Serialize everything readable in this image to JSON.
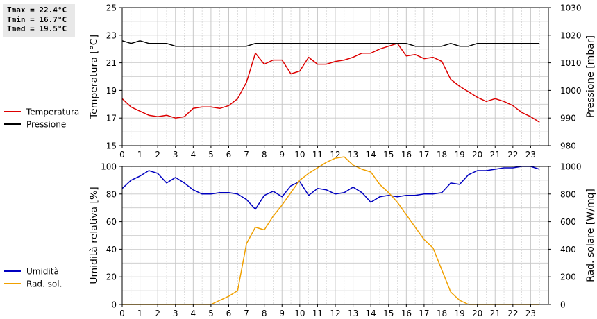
{
  "stats": {
    "tmax": "Tmax = 22.4°C",
    "tmin": "Tmin = 16.7°C",
    "tmed": "Tmed = 19.5°C"
  },
  "colors": {
    "temperature": "#dd0000",
    "pressure": "#000000",
    "humidity": "#0000c0",
    "solar": "#f0a000",
    "grid": "#c8c8c8"
  },
  "chart_data": [
    {
      "type": "line",
      "title": "",
      "x_ticks": [
        0,
        1,
        2,
        3,
        4,
        5,
        6,
        7,
        8,
        9,
        10,
        11,
        12,
        13,
        14,
        15,
        16,
        17,
        18,
        19,
        20,
        21,
        22,
        23
      ],
      "xlim": [
        0,
        24
      ],
      "y_left": {
        "label": "Temperatura [°C]",
        "lim": [
          15,
          25
        ],
        "ticks": [
          15,
          17,
          19,
          21,
          23,
          25
        ]
      },
      "y_right": {
        "label": "Pressione [mbar]",
        "lim": [
          980,
          1030
        ],
        "ticks": [
          980,
          990,
          1000,
          1010,
          1020,
          1030
        ]
      },
      "grid": true,
      "legend": "left",
      "series": [
        {
          "name": "Temperatura",
          "axis": "left",
          "color": "#dd0000",
          "x": [
            0,
            0.5,
            1,
            1.5,
            2,
            2.5,
            3,
            3.5,
            4,
            4.5,
            5,
            5.5,
            6,
            6.5,
            7,
            7.5,
            8,
            8.5,
            9,
            9.5,
            10,
            10.5,
            11,
            11.5,
            12,
            12.5,
            13,
            13.5,
            14,
            14.5,
            15,
            15.5,
            16,
            16.5,
            17,
            17.5,
            18,
            18.5,
            19,
            19.5,
            20,
            20.5,
            21,
            21.5,
            22,
            22.5,
            23,
            23.5
          ],
          "y": [
            18.4,
            17.8,
            17.5,
            17.2,
            17.1,
            17.2,
            17.0,
            17.1,
            17.7,
            17.8,
            17.8,
            17.7,
            17.9,
            18.4,
            19.6,
            21.7,
            20.9,
            21.2,
            21.2,
            20.2,
            20.4,
            21.4,
            20.9,
            20.9,
            21.1,
            21.2,
            21.4,
            21.7,
            21.7,
            22.0,
            22.2,
            22.4,
            21.5,
            21.6,
            21.3,
            21.4,
            21.1,
            19.8,
            19.3,
            18.9,
            18.5,
            18.2,
            18.4,
            18.2,
            17.9,
            17.4,
            17.1,
            16.7
          ]
        },
        {
          "name": "Pressione",
          "axis": "right",
          "color": "#000000",
          "x": [
            0,
            0.5,
            1,
            1.5,
            2,
            2.5,
            3,
            3.5,
            4,
            4.5,
            5,
            5.5,
            6,
            6.5,
            7,
            7.5,
            8,
            8.5,
            9,
            9.5,
            10,
            10.5,
            11,
            11.5,
            12,
            12.5,
            13,
            13.5,
            14,
            14.5,
            15,
            15.5,
            16,
            16.5,
            17,
            17.5,
            18,
            18.5,
            19,
            19.5,
            20,
            20.5,
            21,
            21.5,
            22,
            22.5,
            23,
            23.5
          ],
          "y": [
            1018,
            1017,
            1018,
            1017,
            1017,
            1017,
            1016,
            1016,
            1016,
            1016,
            1016,
            1016,
            1016,
            1016,
            1016,
            1017,
            1017,
            1017,
            1017,
            1017,
            1017,
            1017,
            1017,
            1017,
            1017,
            1017,
            1017,
            1017,
            1017,
            1017,
            1017,
            1017,
            1017,
            1016,
            1016,
            1016,
            1016,
            1017,
            1016,
            1016,
            1017,
            1017,
            1017,
            1017,
            1017,
            1017,
            1017,
            1017
          ]
        }
      ]
    },
    {
      "type": "line",
      "title": "",
      "x_ticks": [
        0,
        1,
        2,
        3,
        4,
        5,
        6,
        7,
        8,
        9,
        10,
        11,
        12,
        13,
        14,
        15,
        16,
        17,
        18,
        19,
        20,
        21,
        22,
        23
      ],
      "xlim": [
        0,
        24
      ],
      "y_left": {
        "label": "Umidità relativa [%]",
        "lim": [
          0,
          100
        ],
        "ticks": [
          0,
          20,
          40,
          60,
          80,
          100
        ]
      },
      "y_right": {
        "label": "Rad. solare [W/mq]",
        "lim": [
          0,
          1000
        ],
        "ticks": [
          0,
          200,
          400,
          600,
          800,
          1000
        ]
      },
      "grid": true,
      "legend": "left",
      "series": [
        {
          "name": "Umidità",
          "axis": "left",
          "color": "#0000c0",
          "x": [
            0,
            0.5,
            1,
            1.5,
            2,
            2.5,
            3,
            3.5,
            4,
            4.5,
            5,
            5.5,
            6,
            6.5,
            7,
            7.5,
            8,
            8.5,
            9,
            9.5,
            10,
            10.5,
            11,
            11.5,
            12,
            12.5,
            13,
            13.5,
            14,
            14.5,
            15,
            15.5,
            16,
            16.5,
            17,
            17.5,
            18,
            18.5,
            19,
            19.5,
            20,
            20.5,
            21,
            21.5,
            22,
            22.5,
            23,
            23.5
          ],
          "y": [
            84,
            90,
            93,
            97,
            95,
            88,
            92,
            88,
            83,
            80,
            80,
            81,
            81,
            80,
            76,
            69,
            79,
            82,
            78,
            86,
            89,
            79,
            84,
            83,
            80,
            81,
            85,
            81,
            74,
            78,
            79,
            78,
            79,
            79,
            80,
            80,
            81,
            88,
            87,
            94,
            97,
            97,
            98,
            99,
            99,
            100,
            100,
            98
          ]
        },
        {
          "name": "Rad. sol.",
          "axis": "right",
          "color": "#f0a000",
          "x": [
            0,
            0.5,
            1,
            1.5,
            2,
            2.5,
            3,
            3.5,
            4,
            4.5,
            5,
            5.5,
            6,
            6.5,
            7,
            7.5,
            8,
            8.5,
            9,
            9.5,
            10,
            10.5,
            11,
            11.5,
            12,
            12.5,
            13,
            13.5,
            14,
            14.5,
            15,
            15.5,
            16,
            16.5,
            17,
            17.5,
            18,
            18.5,
            19,
            19.5,
            20,
            20.5,
            21,
            21.5,
            22,
            22.5,
            23,
            23.5
          ],
          "y": [
            0,
            0,
            0,
            0,
            0,
            0,
            0,
            0,
            0,
            0,
            0,
            30,
            60,
            100,
            440,
            560,
            540,
            640,
            720,
            810,
            900,
            950,
            990,
            1030,
            1060,
            1070,
            1010,
            980,
            960,
            870,
            810,
            740,
            650,
            560,
            470,
            410,
            250,
            90,
            30,
            0,
            0,
            0,
            0,
            0,
            0,
            0,
            0,
            0
          ]
        }
      ]
    }
  ]
}
